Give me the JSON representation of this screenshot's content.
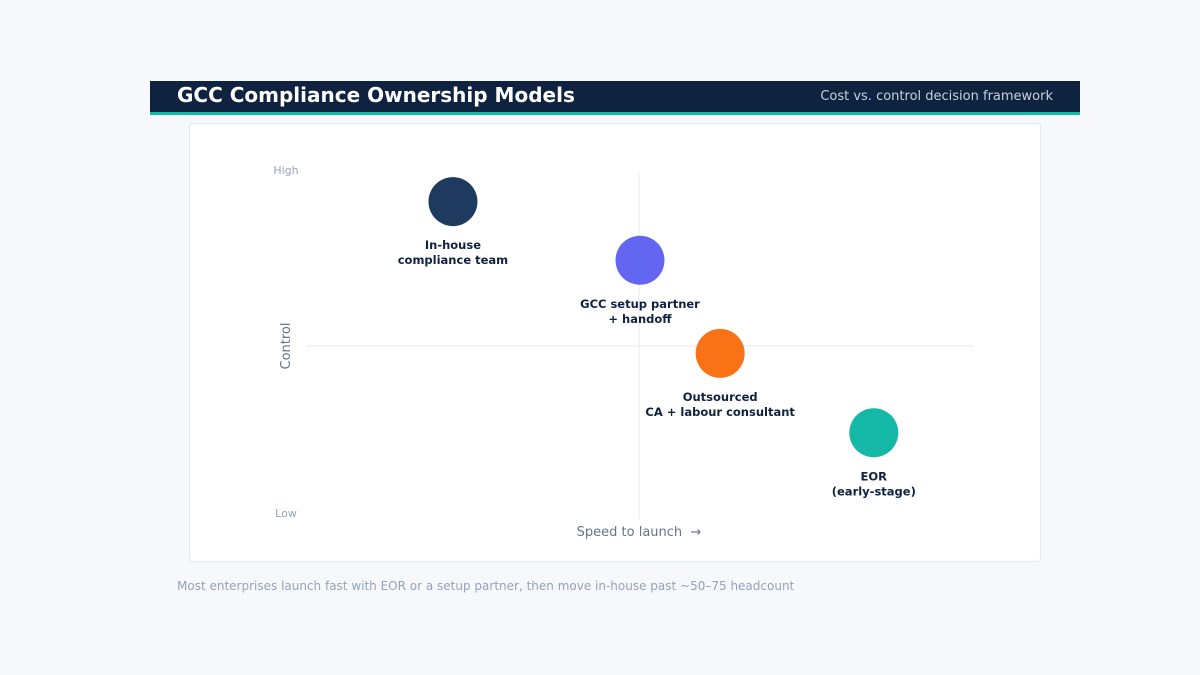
{
  "header": {
    "title": "GCC Compliance Ownership Models",
    "subtitle": "Cost vs. control decision framework",
    "background_color": "#0f2240",
    "accent_color": "#14b8a6"
  },
  "footer": {
    "note": "Most enterprises launch fast with EOR or a setup partner, then move in-house past ~50–75 headcount"
  },
  "chart_data": {
    "type": "scatter",
    "title": "",
    "xlabel": "Speed to launch  →",
    "ylabel": "Control",
    "y_tick_high": "High",
    "y_tick_low": "Low",
    "xlim": [
      0,
      1
    ],
    "ylim": [
      0,
      1
    ],
    "quadrant_dividers": true,
    "points": [
      {
        "label_lines": [
          "In-house",
          "compliance team"
        ],
        "x": 0.22,
        "y": 0.92,
        "color": "#1e3a5f"
      },
      {
        "label_lines": [
          "GCC setup partner",
          "+ handoff"
        ],
        "x": 0.5,
        "y": 0.75,
        "color": "#6366f1"
      },
      {
        "label_lines": [
          "Outsourced",
          "CA + labour consultant"
        ],
        "x": 0.62,
        "y": 0.48,
        "color": "#f97316"
      },
      {
        "label_lines": [
          "EOR",
          "(early-stage)"
        ],
        "x": 0.85,
        "y": 0.25,
        "color": "#14b8a6"
      }
    ]
  }
}
